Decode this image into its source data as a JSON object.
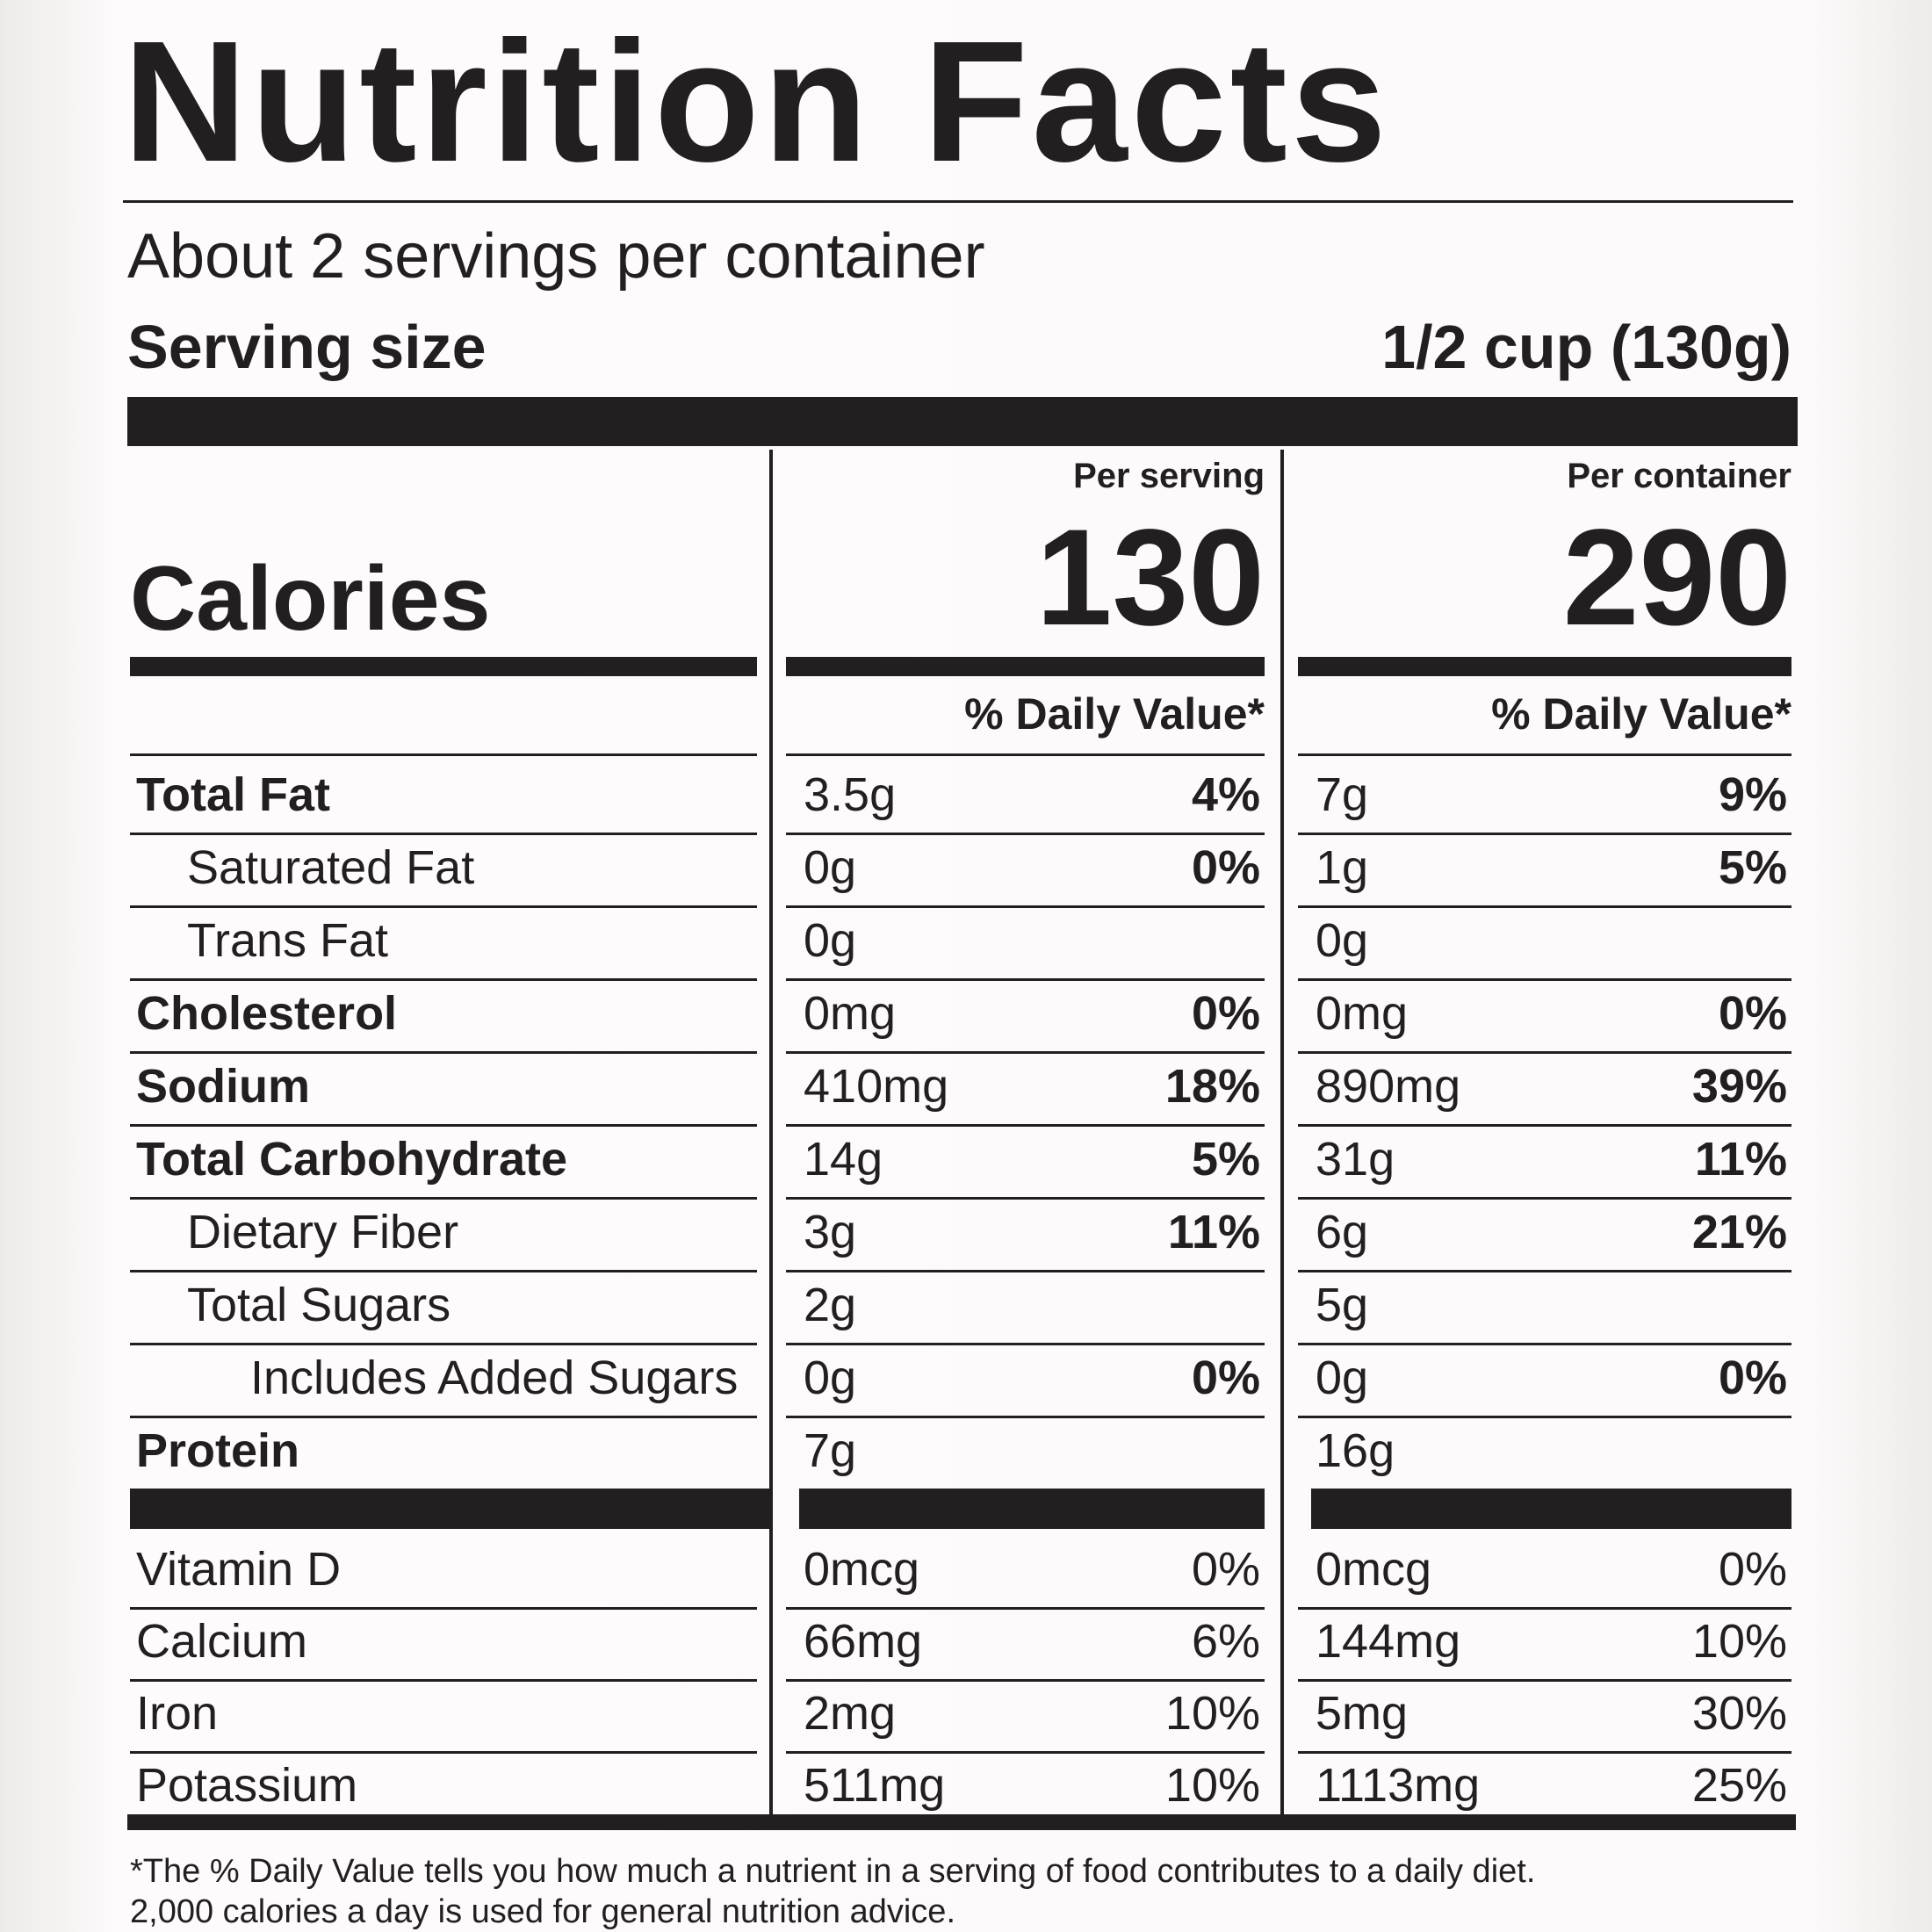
{
  "header": {
    "title": "Nutrition Facts",
    "servings_per_container": "About 2 servings per container",
    "serving_size_label": "Serving size",
    "serving_size_value": "1/2 cup (130g)"
  },
  "calories": {
    "label": "Calories",
    "columns": [
      {
        "heading": "Per serving",
        "value": 130,
        "dv_heading": "% Daily Value*"
      },
      {
        "heading": "Per container",
        "value": 290,
        "dv_heading": "% Daily Value*"
      }
    ]
  },
  "nutrients": [
    {
      "name": "Total Fat",
      "level": 0,
      "values": [
        {
          "amount": "3.5g",
          "dv": "4%"
        },
        {
          "amount": "7g",
          "dv": "9%"
        }
      ]
    },
    {
      "name": "Saturated Fat",
      "level": 1,
      "values": [
        {
          "amount": "0g",
          "dv": "0%"
        },
        {
          "amount": "1g",
          "dv": "5%"
        }
      ]
    },
    {
      "name": "Trans Fat",
      "level": 1,
      "values": [
        {
          "amount": "0g",
          "dv": null
        },
        {
          "amount": "0g",
          "dv": null
        }
      ]
    },
    {
      "name": "Cholesterol",
      "level": 0,
      "values": [
        {
          "amount": "0mg",
          "dv": "0%"
        },
        {
          "amount": "0mg",
          "dv": "0%"
        }
      ]
    },
    {
      "name": "Sodium",
      "level": 0,
      "values": [
        {
          "amount": "410mg",
          "dv": "18%"
        },
        {
          "amount": "890mg",
          "dv": "39%"
        }
      ]
    },
    {
      "name": "Total Carbohydrate",
      "level": 0,
      "values": [
        {
          "amount": "14g",
          "dv": "5%"
        },
        {
          "amount": "31g",
          "dv": "11%"
        }
      ]
    },
    {
      "name": "Dietary Fiber",
      "level": 1,
      "values": [
        {
          "amount": "3g",
          "dv": "11%"
        },
        {
          "amount": "6g",
          "dv": "21%"
        }
      ]
    },
    {
      "name": "Total Sugars",
      "level": 1,
      "values": [
        {
          "amount": "2g",
          "dv": null
        },
        {
          "amount": "5g",
          "dv": null
        }
      ]
    },
    {
      "name": "Includes Added Sugars",
      "level": 2,
      "values": [
        {
          "amount": "0g",
          "dv": "0%"
        },
        {
          "amount": "0g",
          "dv": "0%"
        }
      ]
    },
    {
      "name": "Protein",
      "level": 0,
      "values": [
        {
          "amount": "7g",
          "dv": null
        },
        {
          "amount": "16g",
          "dv": null
        }
      ]
    }
  ],
  "vitamins": [
    {
      "name": "Vitamin D",
      "values": [
        {
          "amount": "0mcg",
          "dv": "0%"
        },
        {
          "amount": "0mcg",
          "dv": "0%"
        }
      ]
    },
    {
      "name": "Calcium",
      "values": [
        {
          "amount": "66mg",
          "dv": "6%"
        },
        {
          "amount": "144mg",
          "dv": "10%"
        }
      ]
    },
    {
      "name": "Iron",
      "values": [
        {
          "amount": "2mg",
          "dv": "10%"
        },
        {
          "amount": "5mg",
          "dv": "30%"
        }
      ]
    },
    {
      "name": "Potassium",
      "values": [
        {
          "amount": "511mg",
          "dv": "10%"
        },
        {
          "amount": "1113mg",
          "dv": "25%"
        }
      ]
    }
  ],
  "footnote": [
    "*The % Daily Value tells you how much a nutrient in a serving of food contributes to a daily diet.",
    "2,000 calories a day is used for general nutrition advice."
  ]
}
